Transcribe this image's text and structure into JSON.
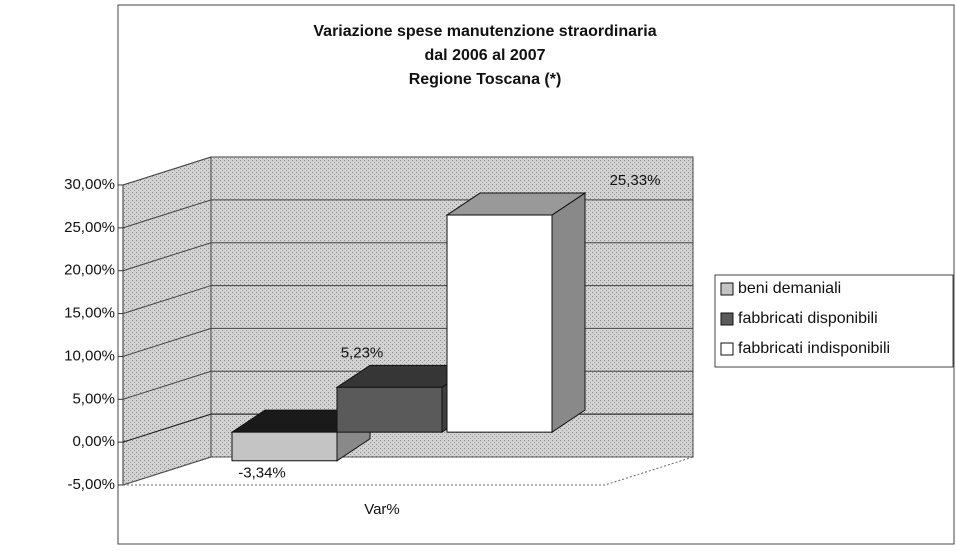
{
  "chart_data": {
    "type": "bar3d",
    "title": [
      "Variazione spese manutenzione straordinaria",
      "dal 2006 al 2007",
      "Regione Toscana (*)"
    ],
    "categories": [
      "Var%"
    ],
    "series": [
      {
        "name": "beni demaniali",
        "color": "#c4c4c4",
        "values": [
          -3.34
        ],
        "value_labels": [
          "-3,34%"
        ]
      },
      {
        "name": "fabbricati disponibili",
        "color": "#5a5a5a",
        "values": [
          5.23
        ],
        "value_labels": [
          "5,23%"
        ]
      },
      {
        "name": "fabbricati indisponibili",
        "color": "#ffffff",
        "values": [
          25.33
        ],
        "value_labels": [
          "25,33%"
        ]
      }
    ],
    "ylim": [
      -5,
      30
    ],
    "yticks": [
      {
        "value": -5,
        "label": "-5,00%"
      },
      {
        "value": 0,
        "label": "0,00%"
      },
      {
        "value": 5,
        "label": "5,00%"
      },
      {
        "value": 10,
        "label": "10,00%"
      },
      {
        "value": 15,
        "label": "15,00%"
      },
      {
        "value": 20,
        "label": "20,00%"
      },
      {
        "value": 25,
        "label": "25,00%"
      },
      {
        "value": 30,
        "label": "30,00%"
      }
    ],
    "grid": true,
    "legend": "right"
  }
}
